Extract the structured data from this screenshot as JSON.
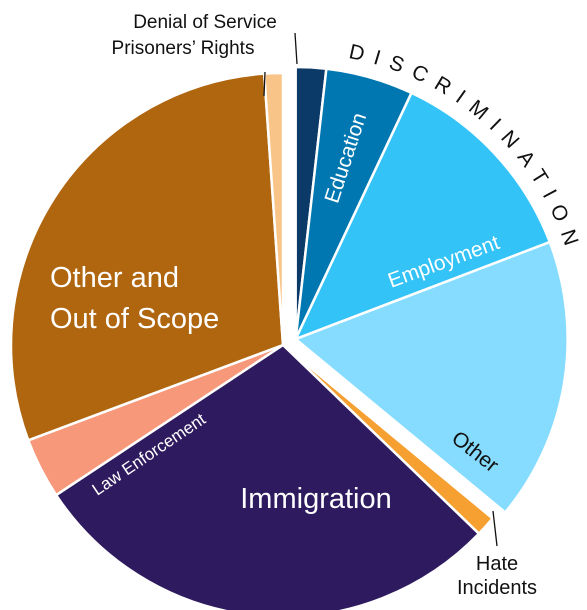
{
  "chart_data": {
    "type": "pie",
    "title": "",
    "group_label": "DISCRIMINATION",
    "slices": [
      {
        "label": "Denial of Service",
        "value": 1.8,
        "color": "#0b3a68",
        "group": "discrimination"
      },
      {
        "label": "Education",
        "value": 5.2,
        "color": "#0077b0",
        "group": "discrimination"
      },
      {
        "label": "Employment",
        "value": 12.2,
        "color": "#33c3f7",
        "group": "discrimination"
      },
      {
        "label": "Other",
        "value": 16.8,
        "color": "#86dcff",
        "group": "discrimination"
      },
      {
        "label": "Hate Incidents",
        "value": 1.2,
        "color": "#f5a030"
      },
      {
        "label": "Immigration",
        "value": 28.5,
        "color": "#2e1a5e"
      },
      {
        "label": "Law Enforcement",
        "value": 3.6,
        "color": "#f7987a"
      },
      {
        "label": "Other and Out of Scope",
        "value": 29.6,
        "color": "#b0650f"
      },
      {
        "label": "Prisoners’ Rights",
        "value": 1.1,
        "color": "#f9c487"
      }
    ],
    "label_lines": {
      "denial": "Denial of Service",
      "prisoners": "Prisoners’ Rights",
      "education": "Education",
      "employment": "Employment",
      "other_disc": "Other",
      "hate_1": "Hate",
      "hate_2": "Incidents",
      "immigration": "Immigration",
      "law": "Law Enforcement",
      "scope_1": "Other and",
      "scope_2": "Out of Scope"
    }
  }
}
